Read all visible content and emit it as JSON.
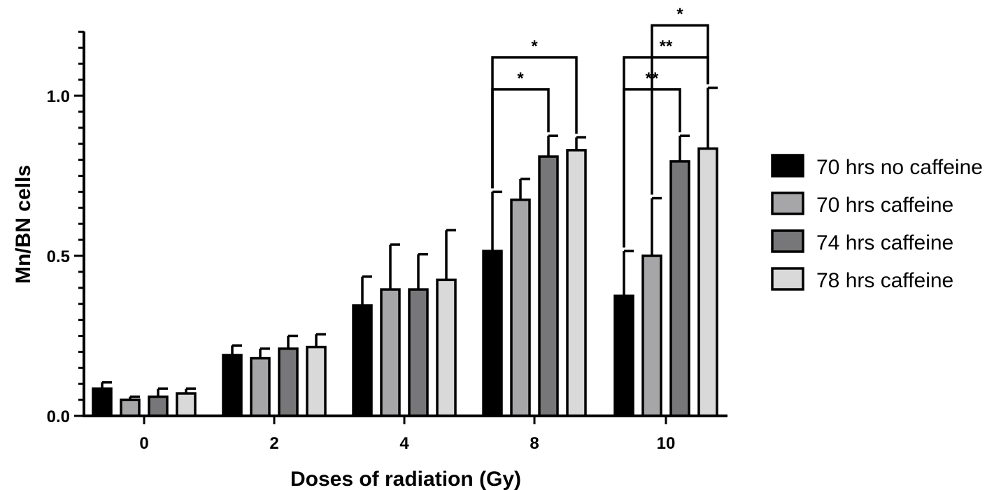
{
  "chart_data": {
    "type": "bar",
    "title": "",
    "xlabel": "Doses of radiation (Gy)",
    "ylabel": "Mn/BN cells",
    "categories": [
      "0",
      "2",
      "4",
      "8",
      "10"
    ],
    "yticks": [
      "0.0",
      "0.5",
      "1.0"
    ],
    "ylim": [
      0,
      1.2
    ],
    "grid": false,
    "legend_position": "right",
    "series": [
      {
        "name": "70 hrs no caffeine",
        "color": "#000000",
        "values": [
          0.085,
          0.19,
          0.345,
          0.515,
          0.375
        ],
        "errors": [
          0.02,
          0.03,
          0.09,
          0.185,
          0.14
        ]
      },
      {
        "name": "70 hrs caffeine",
        "color": "#a6a6a8",
        "values": [
          0.05,
          0.18,
          0.395,
          0.675,
          0.5
        ],
        "errors": [
          0.01,
          0.03,
          0.14,
          0.065,
          0.18
        ]
      },
      {
        "name": "74 hrs caffeine",
        "color": "#777779",
        "values": [
          0.06,
          0.21,
          0.395,
          0.81,
          0.795
        ],
        "errors": [
          0.025,
          0.04,
          0.11,
          0.065,
          0.08
        ]
      },
      {
        "name": "78 hrs caffeine",
        "color": "#d9d9d9",
        "values": [
          0.07,
          0.215,
          0.425,
          0.83,
          0.835
        ],
        "errors": [
          0.015,
          0.04,
          0.155,
          0.04,
          0.19
        ]
      }
    ],
    "significance": [
      {
        "category": "8",
        "from_series": 0,
        "to_series": 2,
        "label": "*",
        "level": 1.02
      },
      {
        "category": "8",
        "from_series": 0,
        "to_series": 3,
        "label": "*",
        "level": 1.12
      },
      {
        "category": "10",
        "from_series": 0,
        "to_series": 2,
        "label": "**",
        "level": 1.02
      },
      {
        "category": "10",
        "from_series": 0,
        "to_series": 3,
        "label": "**",
        "level": 1.12
      },
      {
        "category": "10",
        "from_series": 1,
        "to_series": 3,
        "label": "*",
        "level": 1.22
      }
    ]
  }
}
